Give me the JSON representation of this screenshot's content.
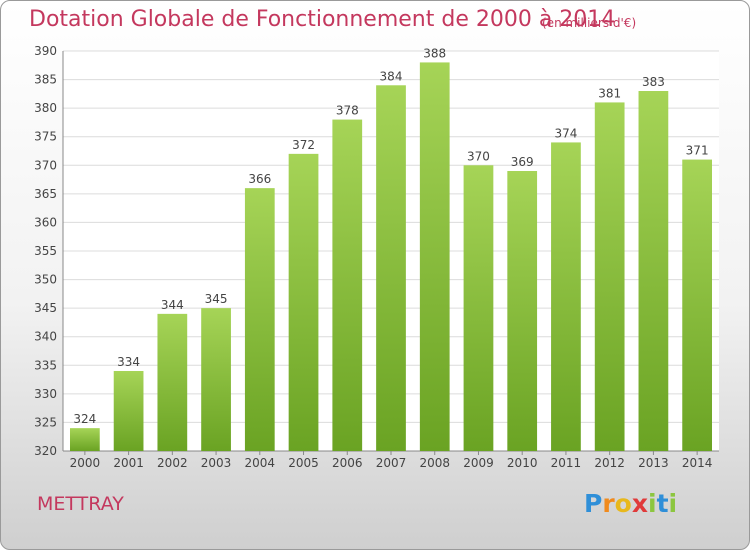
{
  "header": {
    "title": "Dotation Globale de Fonctionnement de 2000 à 2014",
    "subtitle": "(en milliers d'€)"
  },
  "commune": "METTRAY",
  "logo": {
    "letters": [
      "P",
      "r",
      "o",
      "x",
      "i",
      "t",
      "i"
    ],
    "colors": [
      "#2f8fd8",
      "#f08a1c",
      "#e8b81c",
      "#e03a3a",
      "#8cc63f",
      "#2f8fd8",
      "#8cc63f"
    ]
  },
  "colors": {
    "bar_top": "#a6d457",
    "bar_bottom": "#6aa323",
    "grid": "#dcdcdc",
    "axis": "#888888",
    "label": "#444444"
  },
  "chart_data": {
    "type": "bar",
    "title": "Dotation Globale de Fonctionnement de 2000 à 2014",
    "subtitle": "(en milliers d'€)",
    "xlabel": "",
    "ylabel": "",
    "categories": [
      "2000",
      "2001",
      "2002",
      "2003",
      "2004",
      "2005",
      "2006",
      "2007",
      "2008",
      "2009",
      "2010",
      "2011",
      "2012",
      "2013",
      "2014"
    ],
    "values": [
      324,
      334,
      344,
      345,
      366,
      372,
      378,
      384,
      388,
      370,
      369,
      374,
      381,
      383,
      371
    ],
    "ylim": [
      320,
      390
    ],
    "yticks": [
      320,
      325,
      330,
      335,
      340,
      345,
      350,
      355,
      360,
      365,
      370,
      375,
      380,
      385,
      390
    ],
    "grid": true,
    "legend": "none"
  }
}
